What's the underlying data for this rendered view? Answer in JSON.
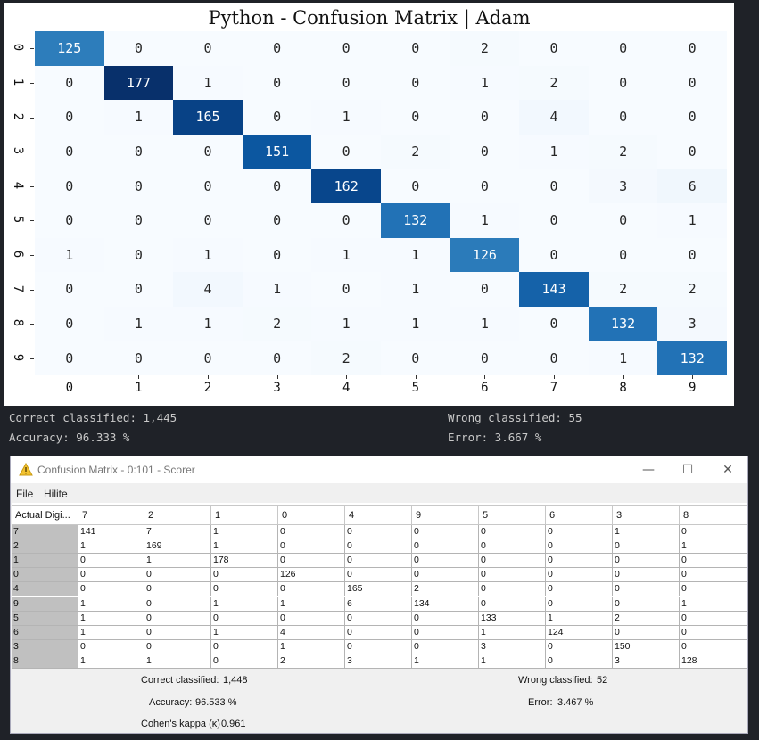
{
  "heatmap": {
    "title": "Python - Confusion Matrix | Adam",
    "labels": [
      "0",
      "1",
      "2",
      "3",
      "4",
      "5",
      "6",
      "7",
      "8",
      "9"
    ],
    "matrix": [
      [
        125,
        0,
        0,
        0,
        0,
        0,
        2,
        0,
        0,
        0
      ],
      [
        0,
        177,
        1,
        0,
        0,
        0,
        1,
        2,
        0,
        0
      ],
      [
        0,
        1,
        165,
        0,
        1,
        0,
        0,
        4,
        0,
        0
      ],
      [
        0,
        0,
        0,
        151,
        0,
        2,
        0,
        1,
        2,
        0
      ],
      [
        0,
        0,
        0,
        0,
        162,
        0,
        0,
        0,
        3,
        6
      ],
      [
        0,
        0,
        0,
        0,
        0,
        132,
        1,
        0,
        0,
        1
      ],
      [
        1,
        0,
        1,
        0,
        1,
        1,
        126,
        0,
        0,
        0
      ],
      [
        0,
        0,
        4,
        1,
        0,
        1,
        0,
        143,
        2,
        2
      ],
      [
        0,
        1,
        1,
        2,
        1,
        1,
        1,
        0,
        132,
        3
      ],
      [
        0,
        0,
        0,
        0,
        2,
        0,
        0,
        0,
        1,
        132
      ]
    ],
    "colormap": "Blues",
    "colorbar": false
  },
  "console": {
    "correct": "Correct classified: 1,445",
    "wrong": "Wrong classified: 55",
    "accuracy": "Accuracy: 96.333 %",
    "error": "Error: 3.667 %"
  },
  "knime": {
    "title": "Confusion Matrix - 0:101 - Scorer",
    "title_icon": "warning-icon",
    "window_controls": {
      "minimize": "—",
      "maximize": "☐",
      "close": "✕"
    },
    "menu": [
      "File",
      "Hilite"
    ],
    "header_first": "Actual Digi...",
    "columns": [
      "7",
      "2",
      "1",
      "0",
      "4",
      "9",
      "5",
      "6",
      "3",
      "8"
    ],
    "rows": [
      {
        "label": "7",
        "values": [
          "141",
          "7",
          "1",
          "0",
          "0",
          "0",
          "0",
          "0",
          "1",
          "0"
        ]
      },
      {
        "label": "2",
        "values": [
          "1",
          "169",
          "1",
          "0",
          "0",
          "0",
          "0",
          "0",
          "0",
          "1"
        ]
      },
      {
        "label": "1",
        "values": [
          "0",
          "1",
          "178",
          "0",
          "0",
          "0",
          "0",
          "0",
          "0",
          "0"
        ]
      },
      {
        "label": "0",
        "values": [
          "0",
          "0",
          "0",
          "126",
          "0",
          "0",
          "0",
          "0",
          "0",
          "0"
        ]
      },
      {
        "label": "4",
        "values": [
          "0",
          "0",
          "0",
          "0",
          "165",
          "2",
          "0",
          "0",
          "0",
          "0"
        ]
      },
      {
        "label": "9",
        "values": [
          "1",
          "0",
          "1",
          "1",
          "6",
          "134",
          "0",
          "0",
          "0",
          "1"
        ]
      },
      {
        "label": "5",
        "values": [
          "1",
          "0",
          "0",
          "0",
          "0",
          "0",
          "133",
          "1",
          "2",
          "0"
        ]
      },
      {
        "label": "6",
        "values": [
          "1",
          "0",
          "1",
          "4",
          "0",
          "0",
          "1",
          "124",
          "0",
          "0"
        ]
      },
      {
        "label": "3",
        "values": [
          "0",
          "0",
          "0",
          "1",
          "0",
          "0",
          "3",
          "0",
          "150",
          "0"
        ]
      },
      {
        "label": "8",
        "values": [
          "1",
          "1",
          "0",
          "2",
          "3",
          "1",
          "1",
          "0",
          "3",
          "128"
        ]
      }
    ],
    "stats": {
      "correct_label": "Correct classified:",
      "correct_value": "1,448",
      "wrong_label": "Wrong classified:",
      "wrong_value": "52",
      "accuracy_label": "Accuracy:",
      "accuracy_value": "96.533 %",
      "error_label": "Error:",
      "error_value": "3.467 %",
      "kappa_label": "Cohen's kappa (κ)",
      "kappa_value": "0.961"
    }
  }
}
